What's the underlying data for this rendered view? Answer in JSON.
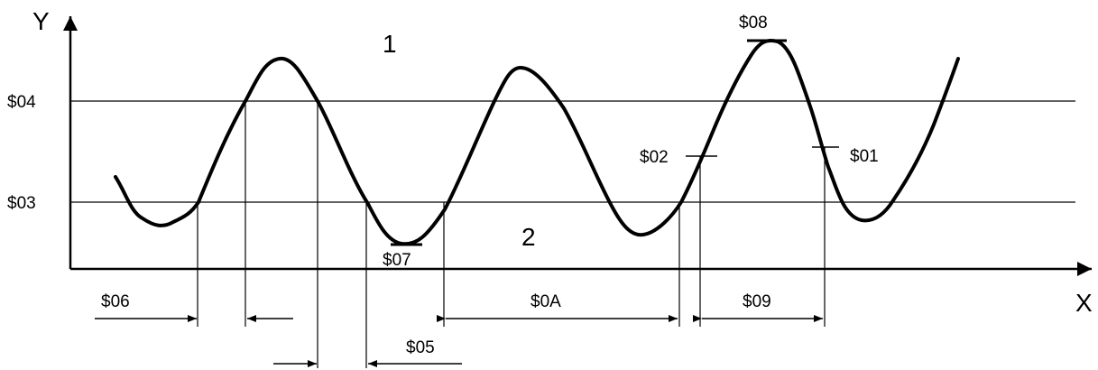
{
  "axes": {
    "x_label": "X",
    "y_label": "Y"
  },
  "levels": {
    "upper": "$04",
    "lower": "$03"
  },
  "regions": {
    "above": "1",
    "below": "2"
  },
  "markers": {
    "peak_max": "$08",
    "valley_min": "$07",
    "rising_point": "$02",
    "falling_point": "$01"
  },
  "intervals": {
    "first_rise": "$06",
    "first_fall": "$05",
    "long_span": "$0A",
    "second_span": "$09"
  },
  "colors": {
    "stroke": "#000000",
    "background": "#ffffff"
  }
}
